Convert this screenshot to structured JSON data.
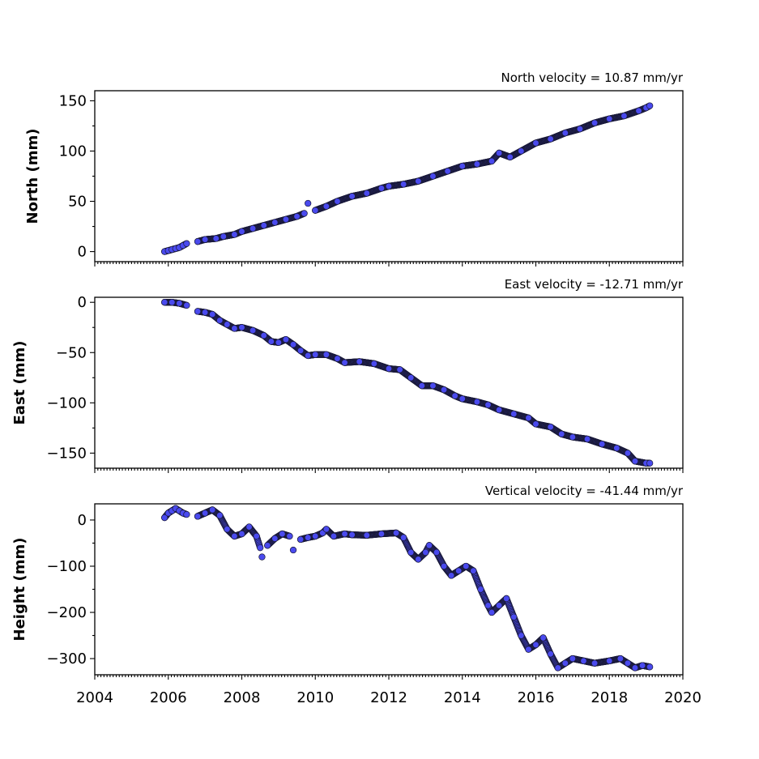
{
  "chart_data": [
    {
      "type": "scatter",
      "title": "North velocity = 10.87 mm/yr",
      "ylabel": "North (mm)",
      "xlim": [
        2004,
        2020
      ],
      "ylim": [
        -10,
        160
      ],
      "yticks": [
        0,
        50,
        100,
        150
      ],
      "yticklabels": [
        "0",
        "50",
        "100",
        "150"
      ],
      "marker_color": "#4a4aee",
      "edge_color": "#1a1a3a",
      "series": [
        {
          "points": [
            [
              2005.9,
              0
            ],
            [
              2006.0,
              1
            ],
            [
              2006.1,
              2
            ],
            [
              2006.2,
              3
            ],
            [
              2006.3,
              4
            ],
            [
              2006.4,
              6
            ],
            [
              2006.5,
              8
            ],
            [
              2006.8,
              10
            ],
            [
              2007.0,
              12
            ],
            [
              2007.3,
              13
            ],
            [
              2007.5,
              15
            ],
            [
              2007.8,
              17
            ],
            [
              2008.0,
              20
            ],
            [
              2008.3,
              23
            ],
            [
              2008.6,
              26
            ],
            [
              2008.9,
              29
            ],
            [
              2009.2,
              32
            ],
            [
              2009.5,
              35
            ],
            [
              2009.7,
              38
            ],
            [
              2009.8,
              48
            ],
            [
              2010.0,
              41
            ],
            [
              2010.3,
              45
            ],
            [
              2010.6,
              50
            ],
            [
              2011.0,
              55
            ],
            [
              2011.4,
              58
            ],
            [
              2011.8,
              63
            ],
            [
              2012.0,
              65
            ],
            [
              2012.4,
              67
            ],
            [
              2012.8,
              70
            ],
            [
              2013.2,
              75
            ],
            [
              2013.6,
              80
            ],
            [
              2014.0,
              85
            ],
            [
              2014.4,
              87
            ],
            [
              2014.8,
              90
            ],
            [
              2015.0,
              98
            ],
            [
              2015.3,
              94
            ],
            [
              2015.6,
              100
            ],
            [
              2016.0,
              108
            ],
            [
              2016.4,
              112
            ],
            [
              2016.8,
              118
            ],
            [
              2017.2,
              122
            ],
            [
              2017.6,
              128
            ],
            [
              2018.0,
              132
            ],
            [
              2018.4,
              135
            ],
            [
              2018.8,
              140
            ],
            [
              2019.0,
              143
            ],
            [
              2019.1,
              145
            ]
          ]
        }
      ]
    },
    {
      "type": "scatter",
      "title": "East velocity = -12.71 mm/yr",
      "ylabel": "East (mm)",
      "xlim": [
        2004,
        2020
      ],
      "ylim": [
        -165,
        5
      ],
      "yticks": [
        0,
        -50,
        -100,
        -150
      ],
      "yticklabels": [
        "0",
        "−50",
        "−100",
        "−150"
      ],
      "marker_color": "#4a4aee",
      "edge_color": "#1a1a3a",
      "series": [
        {
          "points": [
            [
              2005.9,
              0
            ],
            [
              2006.1,
              0
            ],
            [
              2006.3,
              -1
            ],
            [
              2006.5,
              -3
            ],
            [
              2006.8,
              -9
            ],
            [
              2007.0,
              -10
            ],
            [
              2007.2,
              -12
            ],
            [
              2007.4,
              -18
            ],
            [
              2007.6,
              -22
            ],
            [
              2007.8,
              -26
            ],
            [
              2008.0,
              -25
            ],
            [
              2008.3,
              -28
            ],
            [
              2008.6,
              -33
            ],
            [
              2008.8,
              -39
            ],
            [
              2009.0,
              -40
            ],
            [
              2009.2,
              -37
            ],
            [
              2009.4,
              -42
            ],
            [
              2009.6,
              -48
            ],
            [
              2009.8,
              -53
            ],
            [
              2010.0,
              -52
            ],
            [
              2010.3,
              -52
            ],
            [
              2010.6,
              -56
            ],
            [
              2010.8,
              -60
            ],
            [
              2011.2,
              -59
            ],
            [
              2011.6,
              -61
            ],
            [
              2012.0,
              -66
            ],
            [
              2012.3,
              -67
            ],
            [
              2012.6,
              -75
            ],
            [
              2012.9,
              -83
            ],
            [
              2013.2,
              -83
            ],
            [
              2013.5,
              -87
            ],
            [
              2013.8,
              -93
            ],
            [
              2014.0,
              -96
            ],
            [
              2014.4,
              -99
            ],
            [
              2014.7,
              -102
            ],
            [
              2015.0,
              -107
            ],
            [
              2015.4,
              -111
            ],
            [
              2015.8,
              -115
            ],
            [
              2016.0,
              -121
            ],
            [
              2016.4,
              -124
            ],
            [
              2016.7,
              -131
            ],
            [
              2017.0,
              -134
            ],
            [
              2017.4,
              -136
            ],
            [
              2017.8,
              -141
            ],
            [
              2018.2,
              -145
            ],
            [
              2018.5,
              -150
            ],
            [
              2018.7,
              -158
            ],
            [
              2019.0,
              -160
            ],
            [
              2019.1,
              -160
            ]
          ]
        }
      ]
    },
    {
      "type": "scatter",
      "title": "Vertical velocity = -41.44 mm/yr",
      "ylabel": "Height (mm)",
      "xlim": [
        2004,
        2020
      ],
      "ylim": [
        -335,
        35
      ],
      "yticks": [
        0,
        -100,
        -200,
        -300
      ],
      "yticklabels": [
        "0",
        "−100",
        "−200",
        "−300"
      ],
      "marker_color": "#4a4aee",
      "edge_color": "#1a1a3a",
      "series": [
        {
          "points": [
            [
              2005.9,
              5
            ],
            [
              2006.0,
              15
            ],
            [
              2006.1,
              20
            ],
            [
              2006.2,
              25
            ],
            [
              2006.3,
              20
            ],
            [
              2006.4,
              15
            ],
            [
              2006.5,
              12
            ],
            [
              2006.8,
              8
            ],
            [
              2007.0,
              15
            ],
            [
              2007.2,
              22
            ],
            [
              2007.4,
              10
            ],
            [
              2007.6,
              -20
            ],
            [
              2007.8,
              -35
            ],
            [
              2008.0,
              -30
            ],
            [
              2008.2,
              -15
            ],
            [
              2008.4,
              -35
            ],
            [
              2008.5,
              -60
            ],
            [
              2008.55,
              -80
            ],
            [
              2008.7,
              -55
            ],
            [
              2008.9,
              -40
            ],
            [
              2009.1,
              -30
            ],
            [
              2009.3,
              -35
            ],
            [
              2009.4,
              -65
            ],
            [
              2009.6,
              -42
            ],
            [
              2009.8,
              -38
            ],
            [
              2010.0,
              -35
            ],
            [
              2010.2,
              -28
            ],
            [
              2010.3,
              -20
            ],
            [
              2010.5,
              -35
            ],
            [
              2010.8,
              -30
            ],
            [
              2011.0,
              -32
            ],
            [
              2011.4,
              -33
            ],
            [
              2011.8,
              -30
            ],
            [
              2012.2,
              -28
            ],
            [
              2012.4,
              -38
            ],
            [
              2012.6,
              -70
            ],
            [
              2012.8,
              -85
            ],
            [
              2013.0,
              -70
            ],
            [
              2013.1,
              -55
            ],
            [
              2013.3,
              -70
            ],
            [
              2013.5,
              -100
            ],
            [
              2013.7,
              -120
            ],
            [
              2013.9,
              -110
            ],
            [
              2014.1,
              -100
            ],
            [
              2014.3,
              -110
            ],
            [
              2014.5,
              -150
            ],
            [
              2014.7,
              -185
            ],
            [
              2014.8,
              -200
            ],
            [
              2015.0,
              -185
            ],
            [
              2015.2,
              -170
            ],
            [
              2015.4,
              -210
            ],
            [
              2015.6,
              -250
            ],
            [
              2015.8,
              -280
            ],
            [
              2016.0,
              -270
            ],
            [
              2016.2,
              -255
            ],
            [
              2016.4,
              -290
            ],
            [
              2016.6,
              -320
            ],
            [
              2016.8,
              -310
            ],
            [
              2017.0,
              -300
            ],
            [
              2017.3,
              -305
            ],
            [
              2017.6,
              -310
            ],
            [
              2018.0,
              -305
            ],
            [
              2018.3,
              -300
            ],
            [
              2018.5,
              -310
            ],
            [
              2018.7,
              -320
            ],
            [
              2018.9,
              -315
            ],
            [
              2019.1,
              -318
            ]
          ]
        }
      ]
    }
  ],
  "x_axis": {
    "ticks": [
      2004,
      2006,
      2008,
      2010,
      2012,
      2014,
      2016,
      2018,
      2020
    ],
    "ticklabels": [
      "2004",
      "2006",
      "2008",
      "2010",
      "2012",
      "2014",
      "2016",
      "2018",
      "2020"
    ]
  }
}
